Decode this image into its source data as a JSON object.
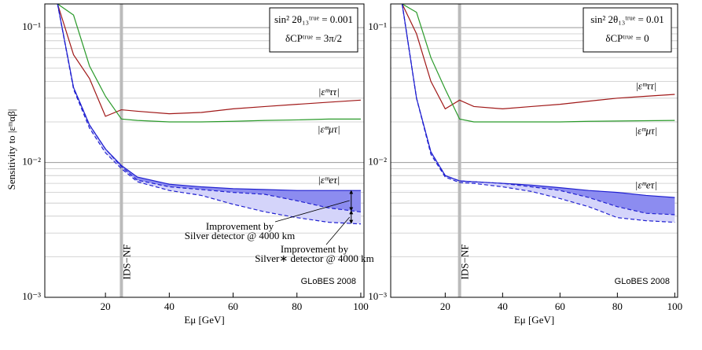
{
  "chart_data": [
    {
      "type": "line",
      "x": [
        5,
        10,
        15,
        20,
        25,
        30,
        40,
        50,
        60,
        70,
        80,
        90,
        100
      ],
      "series": [
        {
          "name": "|εᵐττ|",
          "color": "#a01818",
          "values": [
            0.15,
            0.063,
            0.042,
            0.022,
            0.0246,
            0.024,
            0.023,
            0.0235,
            0.025,
            0.026,
            0.027,
            0.028,
            0.029
          ]
        },
        {
          "name": "|εᵐμτ|",
          "color": "#2a9a2a",
          "values": [
            0.15,
            0.124,
            0.052,
            0.031,
            0.021,
            0.0205,
            0.02,
            0.02,
            0.0202,
            0.0205,
            0.0207,
            0.021,
            0.021
          ]
        },
        {
          "name": "|εᵐeτ|",
          "color": "#2020d0",
          "fill": "#8c8cf0",
          "values": [
            0.15,
            0.036,
            0.019,
            0.0126,
            0.0095,
            0.0078,
            0.0069,
            0.0066,
            0.0064,
            0.0063,
            0.0062,
            0.0062,
            0.0062
          ]
        },
        {
          "color": "#2020d0",
          "dash": true,
          "fill": "#d4d4fa",
          "values": [
            0.15,
            0.036,
            0.019,
            0.0126,
            0.0093,
            0.0074,
            0.0066,
            0.0063,
            0.006,
            0.0058,
            0.0052,
            0.0046,
            0.0043
          ]
        },
        {
          "color": "#2020d0",
          "dash": true,
          "values": [
            0.15,
            0.035,
            0.018,
            0.0118,
            0.009,
            0.0072,
            0.0062,
            0.0057,
            0.0049,
            0.0043,
            0.0039,
            0.0036,
            0.0035
          ]
        }
      ],
      "xlim": [
        1,
        101
      ],
      "ylim": [
        0.001,
        0.15
      ],
      "log_y": true,
      "grid": true,
      "xticks": [
        20,
        40,
        60,
        80,
        100
      ],
      "yticks": [
        {
          "value": 0.001,
          "label": "10⁻³"
        },
        {
          "value": 0.01,
          "label": "10⁻²"
        },
        {
          "value": 0.1,
          "label": "10⁻¹"
        }
      ],
      "yminorticks": [
        0.002,
        0.003,
        0.004,
        0.005,
        0.006,
        0.007,
        0.008,
        0.009,
        0.02,
        0.03,
        0.04,
        0.05,
        0.06,
        0.07,
        0.08,
        0.09
      ],
      "x_label": "Eμ [GeV]",
      "y_label": "Sensitivity to |εᵐαβ|",
      "box": [
        "sin² 2θ₁₃ᵗʳᵘᵉ = 0.001",
        "δCPᵗʳᵘᵉ = 3π/2"
      ],
      "vline": {
        "x": 25,
        "label": "IDS−NF"
      },
      "credit": "GLoBES 2008",
      "notes": [
        [
          "Improvement by",
          "Silver detector @ 4000 km"
        ],
        [
          "Improvement by",
          "Silver∗ detector @ 4000 km"
        ]
      ]
    },
    {
      "type": "line",
      "x": [
        5,
        10,
        15,
        20,
        25,
        30,
        40,
        50,
        60,
        70,
        80,
        90,
        100
      ],
      "series": [
        {
          "name": "|εᵐττ|",
          "color": "#a01818",
          "values": [
            0.15,
            0.09,
            0.04,
            0.025,
            0.029,
            0.026,
            0.025,
            0.026,
            0.027,
            0.0285,
            0.03,
            0.031,
            0.032
          ]
        },
        {
          "name": "|εᵐμτ|",
          "color": "#2a9a2a",
          "values": [
            0.15,
            0.13,
            0.06,
            0.035,
            0.021,
            0.02,
            0.02,
            0.02,
            0.02,
            0.0202,
            0.0203,
            0.0204,
            0.0205
          ]
        },
        {
          "name": "|εᵐeτ|",
          "color": "#2020d0",
          "fill": "#8c8cf0",
          "values": [
            0.15,
            0.03,
            0.012,
            0.008,
            0.0073,
            0.0072,
            0.007,
            0.0068,
            0.0065,
            0.0062,
            0.006,
            0.0057,
            0.0055
          ]
        },
        {
          "color": "#2020d0",
          "dash": true,
          "fill": "#d4d4fa",
          "values": [
            0.15,
            0.03,
            0.012,
            0.008,
            0.0073,
            0.0072,
            0.007,
            0.0066,
            0.0062,
            0.0055,
            0.0047,
            0.0042,
            0.0041
          ]
        },
        {
          "color": "#2020d0",
          "dash": true,
          "values": [
            0.15,
            0.03,
            0.0115,
            0.0078,
            0.0071,
            0.007,
            0.0066,
            0.0061,
            0.0054,
            0.0047,
            0.0039,
            0.0037,
            0.0036
          ]
        }
      ],
      "xlim": [
        1,
        101
      ],
      "ylim": [
        0.001,
        0.15
      ],
      "log_y": true,
      "grid": true,
      "xticks": [
        20,
        40,
        60,
        80,
        100
      ],
      "yticks": [
        {
          "value": 0.001,
          "label": "10⁻³"
        },
        {
          "value": 0.01,
          "label": "10⁻²"
        },
        {
          "value": 0.1,
          "label": "10⁻¹"
        }
      ],
      "yminorticks": [
        0.002,
        0.003,
        0.004,
        0.005,
        0.006,
        0.007,
        0.008,
        0.009,
        0.02,
        0.03,
        0.04,
        0.05,
        0.06,
        0.07,
        0.08,
        0.09
      ],
      "x_label": "Eμ [GeV]",
      "box": [
        "sin² 2θ₁₃ᵗʳᵘᵉ = 0.01",
        "δCPᵗʳᵘᵉ = 0"
      ],
      "vline": {
        "x": 25,
        "label": "IDS−NF"
      },
      "credit": "GLoBES 2008"
    }
  ]
}
